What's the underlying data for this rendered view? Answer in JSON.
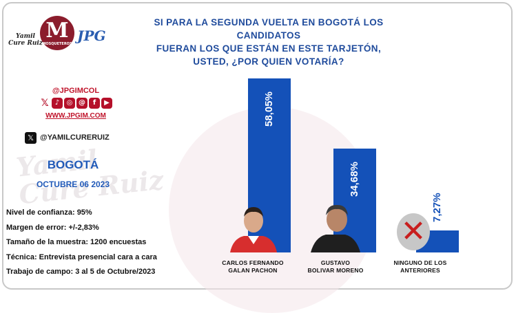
{
  "header": {
    "lines": [
      "SI PARA LA SEGUNDA VUELTA EN BOGOTÁ LOS CANDIDATOS",
      "FUERAN LOS QUE ESTÁN EN ESTE TARJETÓN,",
      "USTED, ¿POR QUIEN VOTARÍA?"
    ]
  },
  "logo": {
    "name_lines": [
      "Yamil",
      "Cure Ruiz"
    ],
    "badge_letter": "M",
    "badge_word": "MOSQUETEROS",
    "brand": "JPG",
    "watermark_lines": [
      "Yamil",
      "Cure Ruiz"
    ]
  },
  "social": {
    "handle": "@JPGIMCOL",
    "icons": [
      "x-icon",
      "tiktok-icon",
      "instagram-icon",
      "threads-icon",
      "facebook-icon",
      "youtube-icon"
    ],
    "url": "WWW.JPGIM.COM",
    "x_handle": "@YAMILCURERUIZ"
  },
  "location": {
    "city": "BOGOTÁ",
    "date": "OCTUBRE 06 2023"
  },
  "technical": [
    "Nivel de confianza: 95%",
    "Margen de error: +/-2,83%",
    "Tamaño de la muestra: 1200 encuestas",
    "Técnica: Entrevista presencial cara a cara",
    "Trabajo de campo: 3 al 5 de Octubre/2023"
  ],
  "colors": {
    "bar": "#1451b8",
    "headline": "#1f4b9c",
    "accent": "#c0142b"
  },
  "chart_data": {
    "type": "bar",
    "categories": [
      "CARLOS FERNANDO\nGALAN PACHON",
      "GUSTAVO\nBOLIVAR MORENO",
      "NINGUNO DE LOS\nANTERIORES"
    ],
    "category_lines": [
      [
        "CARLOS FERNANDO",
        "GALAN PACHON"
      ],
      [
        "GUSTAVO",
        "BOLIVAR MORENO"
      ],
      [
        "NINGUNO DE LOS",
        "ANTERIORES"
      ]
    ],
    "values": [
      58.05,
      34.68,
      7.27
    ],
    "value_labels": [
      "58,05%",
      "34,68%",
      "7,27%"
    ],
    "title": "SI PARA LA SEGUNDA VUELTA EN BOGOTÁ LOS CANDIDATOS FUERAN LOS QUE ESTÁN EN ESTE TARJETÓN, USTED, ¿POR QUIEN VOTARÍA?",
    "xlabel": "",
    "ylabel": "",
    "ylim": [
      0,
      60
    ],
    "grid": false,
    "label_colors": [
      "#ffffff",
      "#ffffff",
      "#1451b8"
    ]
  }
}
